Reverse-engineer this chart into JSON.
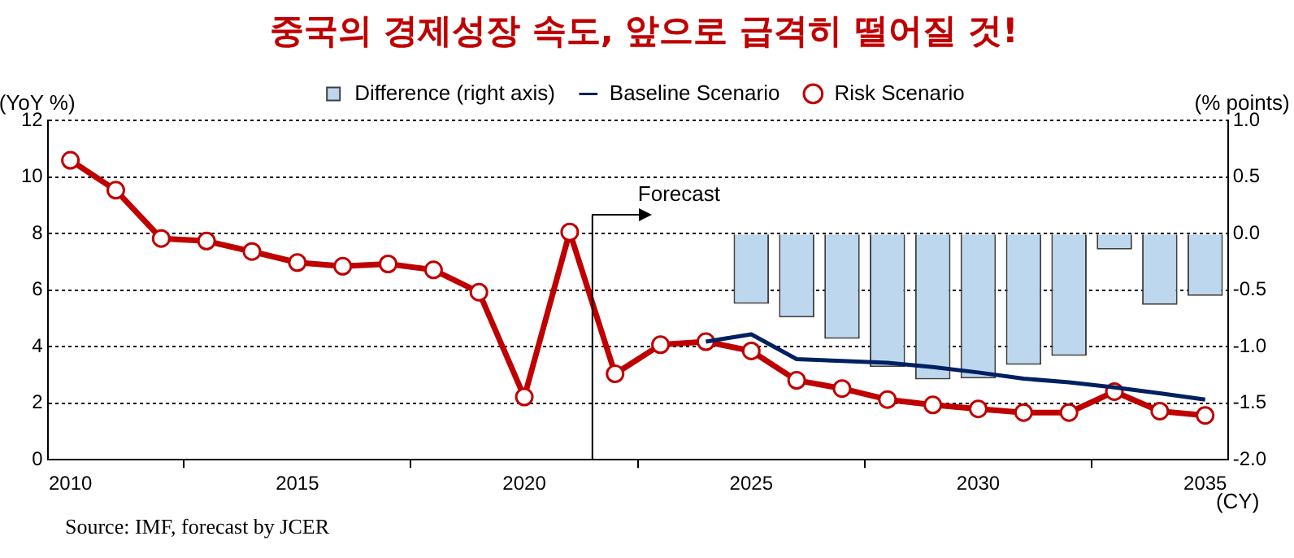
{
  "chart_data": {
    "type": "line",
    "title": "중국의 경제성장 속도, 앞으로 급격히 떨어질 것!",
    "ylabel": "(YoY %)",
    "y2label": "(% points)",
    "xlabel": "(CY)",
    "annotations": [
      "Source: IMF, forecast by JCER"
    ],
    "x": [
      2010,
      2011,
      2012,
      2013,
      2014,
      2015,
      2016,
      2017,
      2018,
      2019,
      2020,
      2021,
      2022,
      2023,
      2024,
      2025,
      2026,
      2027,
      2028,
      2029,
      2030,
      2031,
      2032,
      2033,
      2034,
      2035
    ],
    "series": [
      {
        "name": "Difference (right axis)",
        "type": "bar",
        "axis": "y2",
        "color": "#bdd7ee",
        "x": [
          2025,
          2026,
          2027,
          2028,
          2029,
          2030,
          2031,
          2032,
          2033,
          2034,
          2035
        ],
        "values": [
          -0.62,
          -0.74,
          -0.93,
          -1.18,
          -1.29,
          -1.28,
          -1.16,
          -1.08,
          -0.14,
          -0.63,
          -0.55
        ]
      },
      {
        "name": "Baseline Scenario",
        "type": "line",
        "color": "#002060",
        "marker": "none",
        "x": [
          2024,
          2025,
          2026,
          2027,
          2028,
          2029,
          2030,
          2031,
          2032,
          2033,
          2034,
          2035
        ],
        "values": [
          4.18,
          4.44,
          3.56,
          3.5,
          3.43,
          3.28,
          3.09,
          2.87,
          2.74,
          2.56,
          2.35,
          2.13
        ]
      },
      {
        "name": "Risk Scenario",
        "color": "#c00000",
        "marker": "circle",
        "values": [
          10.6,
          9.54,
          7.83,
          7.74,
          7.37,
          6.98,
          6.85,
          6.93,
          6.72,
          5.93,
          2.22,
          8.06,
          3.04,
          4.07,
          4.18,
          3.85,
          2.81,
          2.52,
          2.13,
          1.94,
          1.8,
          1.67,
          1.67,
          2.41,
          1.72,
          1.57
        ]
      }
    ],
    "xlim": [
      2009.5,
      2035.5
    ],
    "xticks": [
      2010,
      2015,
      2020,
      2025,
      2030,
      2035
    ],
    "ylim": [
      0,
      12
    ],
    "yticks": [
      0,
      2,
      4,
      6,
      8,
      10,
      12
    ],
    "y2lim": [
      -2,
      1
    ],
    "y2ticks": [
      {
        "value": -2,
        "label": "-2.0"
      },
      {
        "value": -1.5,
        "label": "-1.5"
      },
      {
        "value": -1,
        "label": "-1.0"
      },
      {
        "value": -0.5,
        "label": "-0.5"
      },
      {
        "value": 0,
        "label": "0.0"
      },
      {
        "value": 0.5,
        "label": "0.5"
      },
      {
        "value": 1,
        "label": "1.0"
      }
    ],
    "ref_lines": [
      {
        "axis": "x",
        "value": 2021.5,
        "label": "Forecast",
        "color": "#000000"
      }
    ],
    "grid": "y",
    "legend": "top"
  }
}
